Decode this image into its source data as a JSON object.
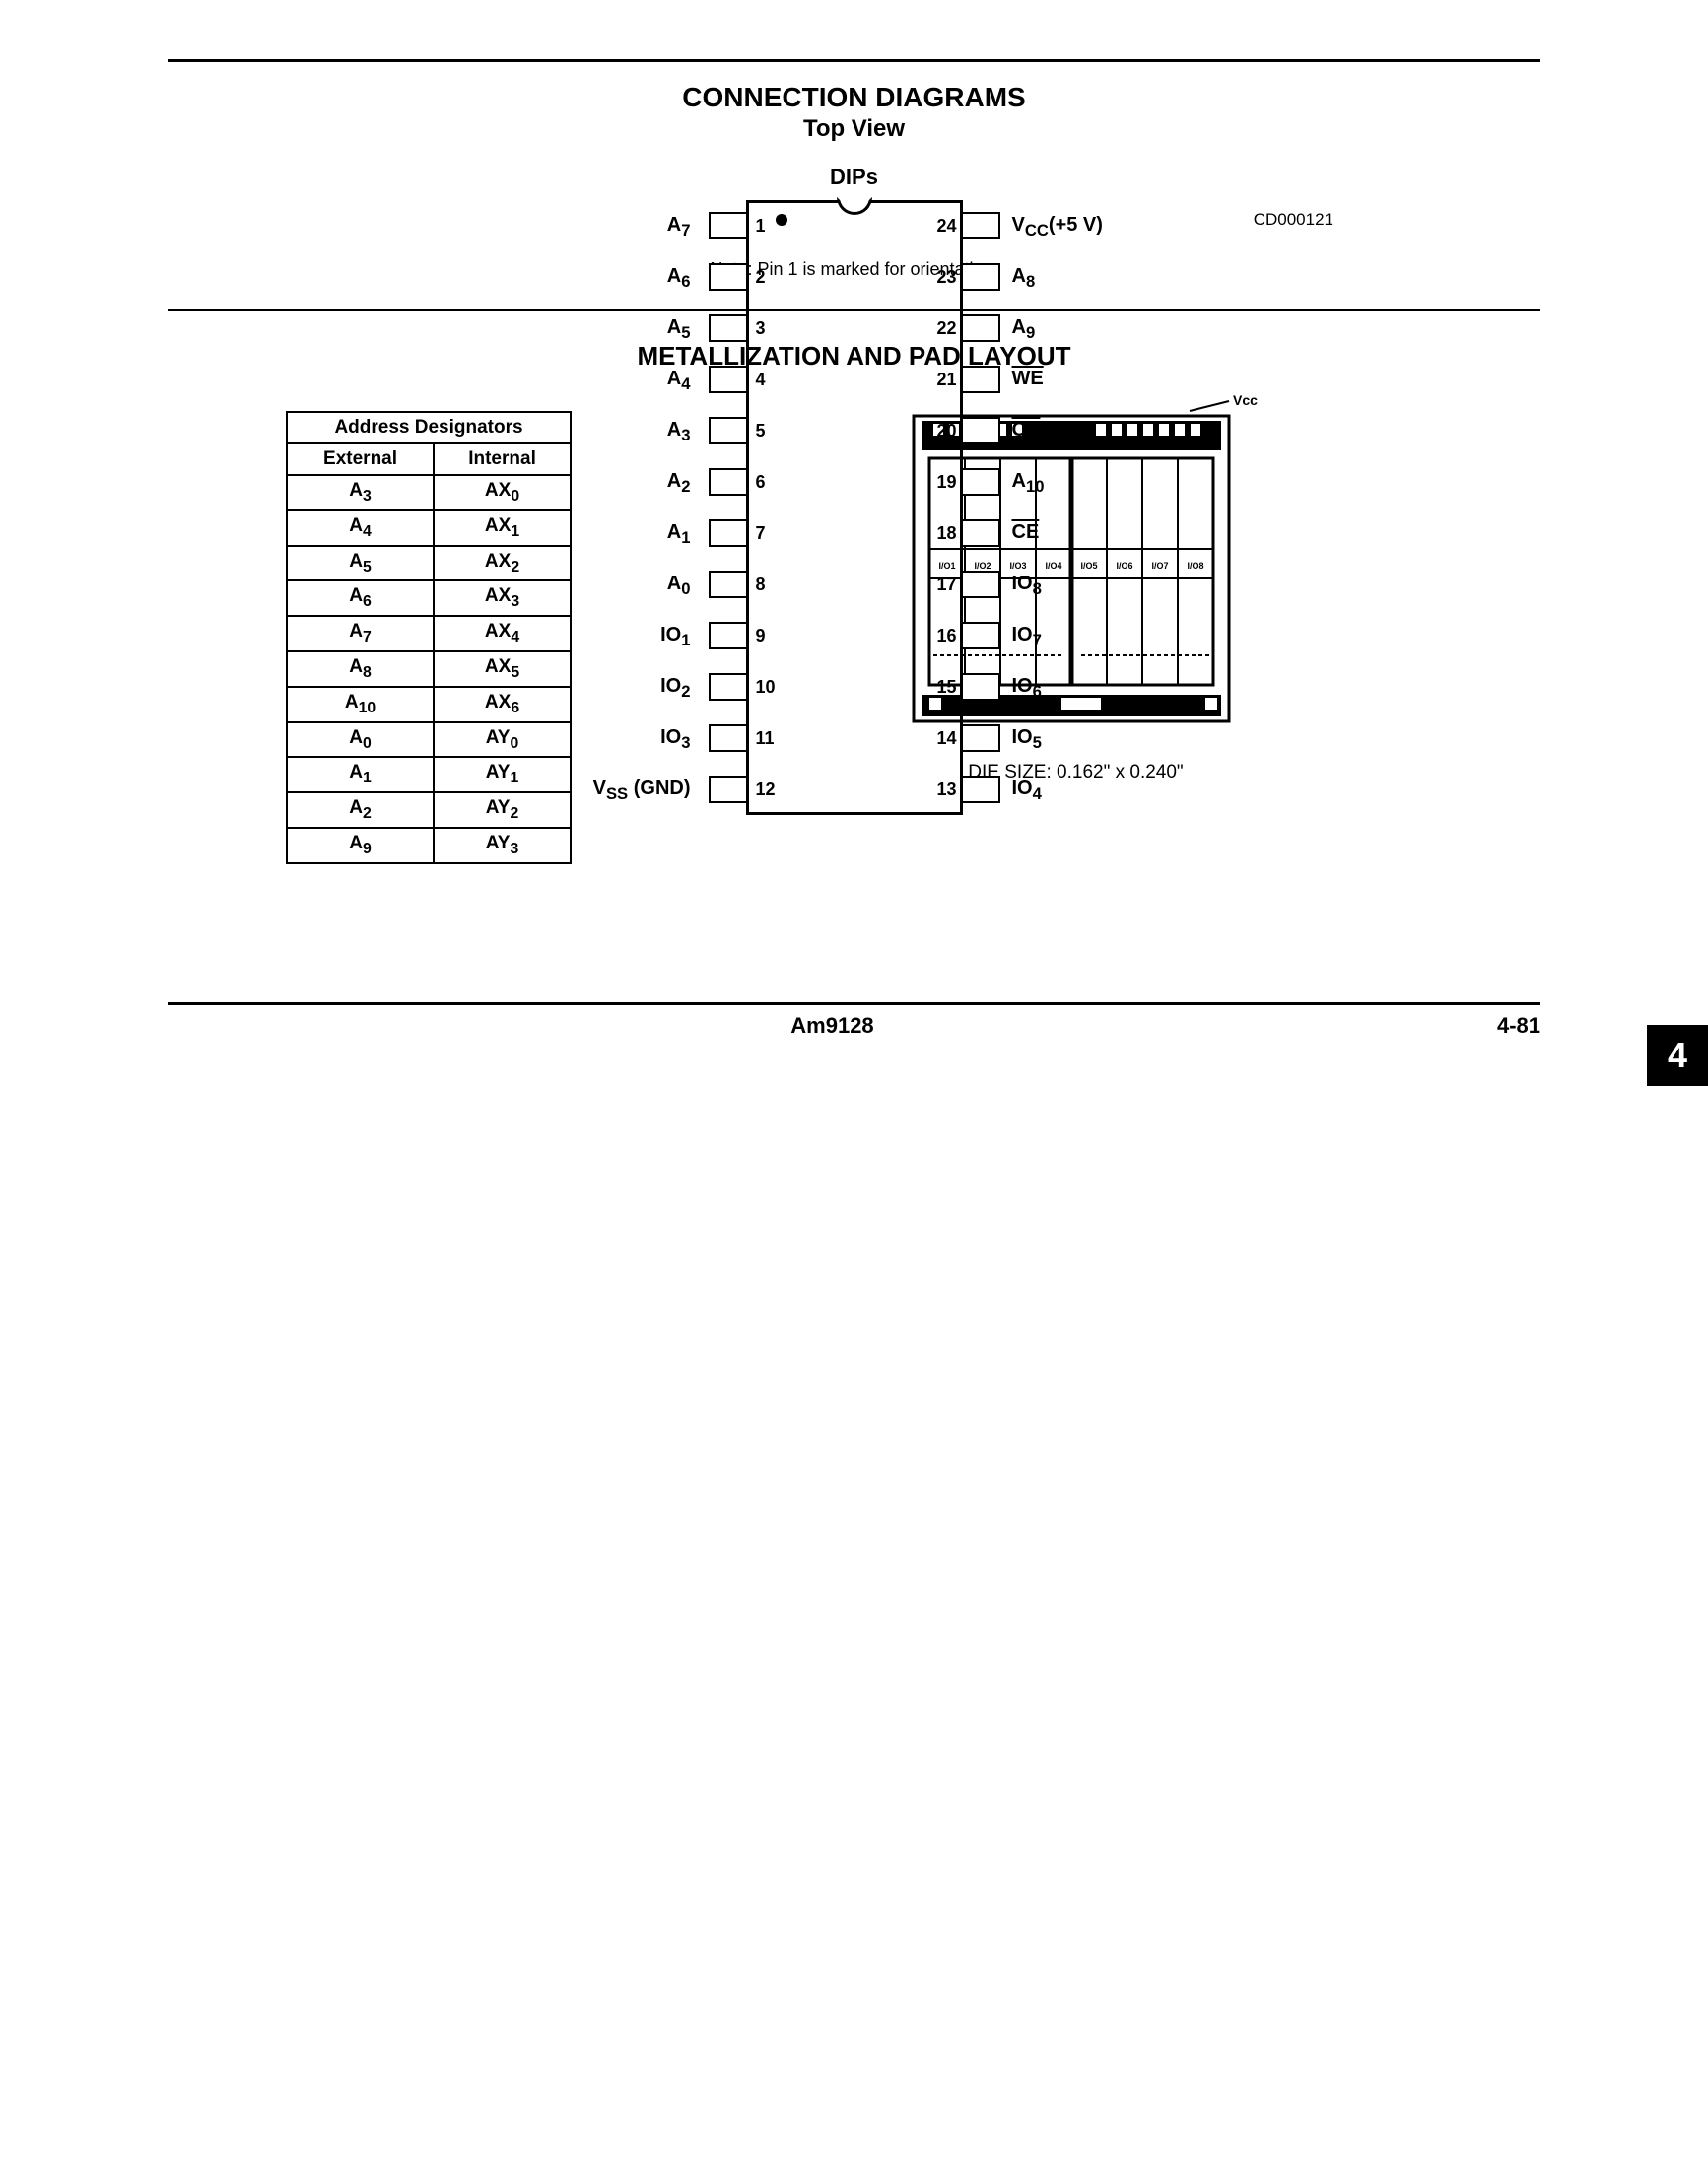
{
  "titles": {
    "main": "CONNECTION DIAGRAMS",
    "sub": "Top View",
    "dips": "DIPs",
    "metallization": "METALLIZATION AND PAD LAYOUT"
  },
  "dip": {
    "code": "CD000121",
    "note": "Note: Pin 1 is marked for orientation.",
    "left_pins": [
      {
        "num": "1",
        "label": "A",
        "sub": "7",
        "ov": false
      },
      {
        "num": "2",
        "label": "A",
        "sub": "6",
        "ov": false
      },
      {
        "num": "3",
        "label": "A",
        "sub": "5",
        "ov": false
      },
      {
        "num": "4",
        "label": "A",
        "sub": "4",
        "ov": false
      },
      {
        "num": "5",
        "label": "A",
        "sub": "3",
        "ov": false
      },
      {
        "num": "6",
        "label": "A",
        "sub": "2",
        "ov": false
      },
      {
        "num": "7",
        "label": "A",
        "sub": "1",
        "ov": false
      },
      {
        "num": "8",
        "label": "A",
        "sub": "0",
        "ov": false
      },
      {
        "num": "9",
        "label": "IO",
        "sub": "1",
        "ov": false
      },
      {
        "num": "10",
        "label": "IO",
        "sub": "2",
        "ov": false
      },
      {
        "num": "11",
        "label": "IO",
        "sub": "3",
        "ov": false
      },
      {
        "num": "12",
        "label": "V",
        "sub": "SS",
        "suffix": " (GND)",
        "ov": false
      }
    ],
    "right_pins": [
      {
        "num": "24",
        "label": "V",
        "sub": "CC",
        "suffix": "(+5 V)",
        "ov": false
      },
      {
        "num": "23",
        "label": "A",
        "sub": "8",
        "ov": false
      },
      {
        "num": "22",
        "label": "A",
        "sub": "9",
        "ov": false
      },
      {
        "num": "21",
        "label": "WE",
        "sub": "",
        "ov": true
      },
      {
        "num": "20",
        "label": "OE",
        "sub": "",
        "ov": true
      },
      {
        "num": "19",
        "label": "A",
        "sub": "10",
        "ov": false
      },
      {
        "num": "18",
        "label": "CE",
        "sub": "",
        "ov": true
      },
      {
        "num": "17",
        "label": "IO",
        "sub": "8",
        "ov": false
      },
      {
        "num": "16",
        "label": "IO",
        "sub": "7",
        "ov": false
      },
      {
        "num": "15",
        "label": "IO",
        "sub": "6",
        "ov": false
      },
      {
        "num": "14",
        "label": "IO",
        "sub": "5",
        "ov": false
      },
      {
        "num": "13",
        "label": "IO",
        "sub": "4",
        "ov": false
      }
    ]
  },
  "addr_table": {
    "title": "Address Designators",
    "col1": "External",
    "col2": "Internal",
    "rows": [
      {
        "ext": "A",
        "ext_sub": "3",
        "int": "AX",
        "int_sub": "0"
      },
      {
        "ext": "A",
        "ext_sub": "4",
        "int": "AX",
        "int_sub": "1"
      },
      {
        "ext": "A",
        "ext_sub": "5",
        "int": "AX",
        "int_sub": "2"
      },
      {
        "ext": "A",
        "ext_sub": "6",
        "int": "AX",
        "int_sub": "3"
      },
      {
        "ext": "A",
        "ext_sub": "7",
        "int": "AX",
        "int_sub": "4"
      },
      {
        "ext": "A",
        "ext_sub": "8",
        "int": "AX",
        "int_sub": "5"
      },
      {
        "ext": "A",
        "ext_sub": "10",
        "int": "AX",
        "int_sub": "6"
      },
      {
        "ext": "A",
        "ext_sub": "0",
        "int": "AY",
        "int_sub": "0"
      },
      {
        "ext": "A",
        "ext_sub": "1",
        "int": "AY",
        "int_sub": "1"
      },
      {
        "ext": "A",
        "ext_sub": "2",
        "int": "AY",
        "int_sub": "2"
      },
      {
        "ext": "A",
        "ext_sub": "9",
        "int": "AY",
        "int_sub": "3"
      }
    ]
  },
  "die": {
    "vcc": "Vcc",
    "io_labels": [
      "I/O1",
      "I/O2",
      "I/O3",
      "I/O4",
      "I/O5",
      "I/O6",
      "I/O7",
      "I/O8"
    ],
    "caption": "DIE SIZE: 0.162\" x 0.240\""
  },
  "side_tab": "4",
  "footer": {
    "part": "Am9128",
    "page": "4-81"
  }
}
